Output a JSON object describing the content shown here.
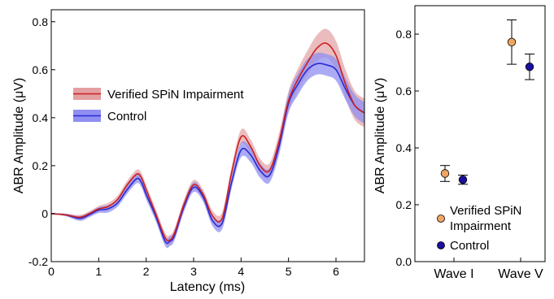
{
  "chart_data": [
    {
      "type": "line",
      "xlabel": "Latency (ms)",
      "ylabel": "ABR Amplitude (μV)",
      "xlim": [
        0,
        6.6
      ],
      "ylim": [
        -0.2,
        0.85
      ],
      "xticks": [
        "0",
        "1",
        "2",
        "3",
        "4",
        "5",
        "6"
      ],
      "yticks": [
        "-0.2",
        "0",
        "0.2",
        "0.4",
        "0.6",
        "0.8"
      ],
      "grid": false,
      "legend_position": "center-left",
      "x": [
        0,
        0.3,
        0.6,
        0.8,
        1.0,
        1.2,
        1.4,
        1.6,
        1.8,
        1.9,
        2.0,
        2.2,
        2.4,
        2.5,
        2.6,
        2.8,
        3.0,
        3.2,
        3.4,
        3.6,
        3.8,
        4.0,
        4.2,
        4.4,
        4.6,
        4.8,
        5.0,
        5.2,
        5.4,
        5.6,
        5.8,
        6.0,
        6.2,
        6.4,
        6.6
      ],
      "series": [
        {
          "name": "Verified SPiN Impairment",
          "color": "#cc1f1f",
          "band_color": "#e3a0a3",
          "values": [
            0,
            -0.005,
            -0.015,
            0.0,
            0.02,
            0.03,
            0.06,
            0.12,
            0.165,
            0.15,
            0.1,
            0.0,
            -0.1,
            -0.11,
            -0.08,
            0.04,
            0.12,
            0.08,
            -0.01,
            -0.02,
            0.17,
            0.32,
            0.28,
            0.2,
            0.18,
            0.3,
            0.47,
            0.56,
            0.63,
            0.69,
            0.71,
            0.66,
            0.54,
            0.45,
            0.42
          ],
          "band": [
            0,
            0.005,
            0.01,
            0.01,
            0.012,
            0.015,
            0.015,
            0.017,
            0.018,
            0.02,
            0.02,
            0.02,
            0.02,
            0.02,
            0.02,
            0.02,
            0.02,
            0.02,
            0.022,
            0.025,
            0.025,
            0.03,
            0.03,
            0.03,
            0.03,
            0.035,
            0.04,
            0.045,
            0.05,
            0.055,
            0.06,
            0.06,
            0.06,
            0.06,
            0.06
          ]
        },
        {
          "name": "Control",
          "color": "#2a2ad4",
          "band_color": "#8f8ff2",
          "values": [
            0,
            -0.005,
            -0.02,
            -0.005,
            0.015,
            0.02,
            0.045,
            0.1,
            0.145,
            0.13,
            0.08,
            -0.01,
            -0.115,
            -0.115,
            -0.09,
            0.03,
            0.11,
            0.07,
            -0.03,
            -0.04,
            0.13,
            0.265,
            0.245,
            0.18,
            0.16,
            0.28,
            0.46,
            0.54,
            0.6,
            0.625,
            0.62,
            0.6,
            0.52,
            0.45,
            0.42
          ],
          "band": [
            0,
            0.005,
            0.01,
            0.01,
            0.012,
            0.015,
            0.015,
            0.017,
            0.018,
            0.02,
            0.02,
            0.02,
            0.02,
            0.02,
            0.02,
            0.02,
            0.02,
            0.02,
            0.022,
            0.025,
            0.025,
            0.03,
            0.03,
            0.03,
            0.03,
            0.035,
            0.04,
            0.045,
            0.045,
            0.045,
            0.045,
            0.045,
            0.045,
            0.045,
            0.045
          ]
        }
      ]
    },
    {
      "type": "scatter",
      "xlabel": "",
      "ylabel": "ABR Amplitude (μV)",
      "categories": [
        "Wave I",
        "Wave V"
      ],
      "ylim": [
        0,
        0.9
      ],
      "yticks": [
        "0.0",
        "0.2",
        "0.4",
        "0.6",
        "0.8"
      ],
      "grid": false,
      "legend_position": "lower-left",
      "series": [
        {
          "name": "Verified SPiN Impairment",
          "color": "#f0a662",
          "values": [
            0.31,
            0.772
          ],
          "error": [
            0.028,
            0.078
          ]
        },
        {
          "name": "Control",
          "color": "#1b0f9e",
          "values": [
            0.288,
            0.685
          ],
          "error": [
            0.016,
            0.045
          ]
        }
      ]
    }
  ],
  "right_legend": {
    "line1": "Verified SPiN",
    "line2": "Impairment",
    "control": "Control"
  }
}
